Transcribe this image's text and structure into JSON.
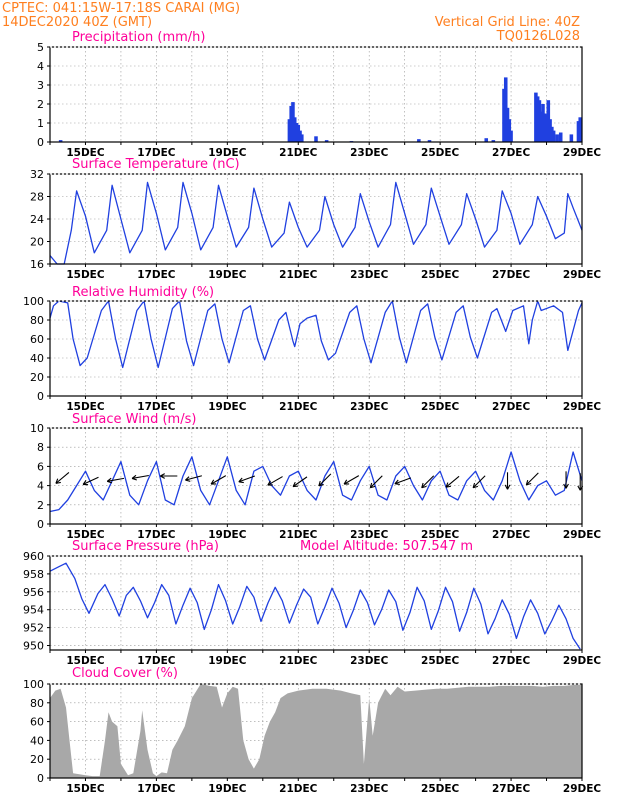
{
  "header": {
    "line1": "CPTEC:   041:15W-17:18S   CARAI (MG)",
    "line2": "14DEC2020 40Z (GMT)",
    "grid_note": "Vertical Grid Line: 40Z",
    "code": "TQ0126L028"
  },
  "colors": {
    "header": "#ff7f1f",
    "title": "#ff0099",
    "line": "#2040e0",
    "cloud": "#a8a8a8",
    "grid": "#999999"
  },
  "chart_data": [
    {
      "id": "precip",
      "type": "bar",
      "title": "Precipitation (mm/h)",
      "x_range_days": [
        14,
        29
      ],
      "ylim": [
        0,
        5
      ],
      "yticks": [
        0,
        1,
        2,
        3,
        4,
        5
      ],
      "grid": true,
      "x_tick_labels": [
        "15DEC",
        "17DEC",
        "19DEC",
        "21DEC",
        "23DEC",
        "25DEC",
        "27DEC",
        "29DEC"
      ],
      "events": [
        {
          "x": 14.3,
          "y": 0.1
        },
        {
          "x": 20.75,
          "y": 1.2
        },
        {
          "x": 20.8,
          "y": 1.9
        },
        {
          "x": 20.85,
          "y": 2.1
        },
        {
          "x": 20.9,
          "y": 1.3
        },
        {
          "x": 20.95,
          "y": 1.0
        },
        {
          "x": 21.0,
          "y": 0.9
        },
        {
          "x": 21.05,
          "y": 0.6
        },
        {
          "x": 21.1,
          "y": 0.4
        },
        {
          "x": 21.5,
          "y": 0.3
        },
        {
          "x": 21.8,
          "y": 0.1
        },
        {
          "x": 22.5,
          "y": 0.05
        },
        {
          "x": 24.4,
          "y": 0.15
        },
        {
          "x": 24.7,
          "y": 0.1
        },
        {
          "x": 26.3,
          "y": 0.2
        },
        {
          "x": 26.5,
          "y": 0.1
        },
        {
          "x": 26.8,
          "y": 2.8
        },
        {
          "x": 26.85,
          "y": 3.4
        },
        {
          "x": 26.9,
          "y": 1.8
        },
        {
          "x": 26.95,
          "y": 1.2
        },
        {
          "x": 27.0,
          "y": 0.6
        },
        {
          "x": 27.7,
          "y": 2.6
        },
        {
          "x": 27.75,
          "y": 2.4
        },
        {
          "x": 27.8,
          "y": 2.2
        },
        {
          "x": 27.85,
          "y": 1.6
        },
        {
          "x": 27.9,
          "y": 2.0
        },
        {
          "x": 27.95,
          "y": 1.5
        },
        {
          "x": 28.0,
          "y": 1.4
        },
        {
          "x": 28.05,
          "y": 2.2
        },
        {
          "x": 28.1,
          "y": 1.2
        },
        {
          "x": 28.15,
          "y": 0.8
        },
        {
          "x": 28.2,
          "y": 0.6
        },
        {
          "x": 28.3,
          "y": 0.4
        },
        {
          "x": 28.4,
          "y": 0.5
        },
        {
          "x": 28.7,
          "y": 0.4
        },
        {
          "x": 28.9,
          "y": 1.1
        },
        {
          "x": 28.95,
          "y": 1.3
        }
      ]
    },
    {
      "id": "temp",
      "type": "line",
      "title": "Surface Temperature (nC)",
      "x_range_days": [
        14,
        29
      ],
      "ylim": [
        16,
        32
      ],
      "yticks": [
        16,
        20,
        24,
        28,
        32
      ],
      "grid": true,
      "x_tick_labels": [
        "15DEC",
        "17DEC",
        "19DEC",
        "21DEC",
        "23DEC",
        "25DEC",
        "27DEC",
        "29DEC"
      ],
      "x": [
        14.0,
        14.2,
        14.4,
        14.6,
        14.75,
        15.0,
        15.25,
        15.6,
        15.75,
        16.0,
        16.25,
        16.6,
        16.75,
        17.0,
        17.25,
        17.6,
        17.75,
        18.0,
        18.25,
        18.6,
        18.75,
        19.0,
        19.25,
        19.6,
        19.75,
        20.0,
        20.25,
        20.6,
        20.75,
        21.0,
        21.25,
        21.6,
        21.75,
        22.0,
        22.25,
        22.6,
        22.75,
        23.0,
        23.25,
        23.6,
        23.75,
        24.0,
        24.25,
        24.6,
        24.75,
        25.0,
        25.25,
        25.6,
        25.75,
        26.0,
        26.25,
        26.6,
        26.75,
        27.0,
        27.25,
        27.6,
        27.75,
        28.0,
        28.25,
        28.5,
        28.6,
        28.75,
        29.0
      ],
      "y": [
        17.5,
        16.0,
        16.0,
        22.0,
        29.0,
        24.5,
        18.0,
        22.0,
        30.0,
        24.0,
        18.0,
        22.0,
        30.5,
        25.0,
        18.5,
        22.5,
        30.5,
        25.0,
        18.5,
        22.5,
        30.0,
        24.5,
        19.0,
        22.5,
        29.5,
        24.0,
        19.0,
        21.5,
        27.0,
        22.5,
        19.0,
        22.0,
        28.0,
        23.0,
        19.0,
        22.5,
        28.5,
        23.5,
        19.0,
        23.0,
        30.5,
        25.0,
        19.5,
        23.0,
        29.5,
        24.5,
        19.5,
        23.0,
        28.5,
        24.0,
        19.0,
        22.0,
        29.0,
        25.0,
        19.5,
        23.0,
        28.0,
        24.5,
        20.5,
        21.5,
        28.5,
        26.0,
        22.0
      ]
    },
    {
      "id": "rh",
      "type": "line",
      "title": "Relative Humidity (%)",
      "x_range_days": [
        14,
        29
      ],
      "ylim": [
        0,
        100
      ],
      "yticks": [
        0,
        20,
        40,
        60,
        80,
        100
      ],
      "grid": true,
      "x_tick_labels": [
        "15DEC",
        "17DEC",
        "19DEC",
        "21DEC",
        "23DEC",
        "25DEC",
        "27DEC",
        "29DEC"
      ],
      "x": [
        14.0,
        14.1,
        14.25,
        14.5,
        14.65,
        14.85,
        15.05,
        15.45,
        15.65,
        15.85,
        16.05,
        16.45,
        16.65,
        16.85,
        17.05,
        17.45,
        17.65,
        17.85,
        18.05,
        18.45,
        18.65,
        18.85,
        19.05,
        19.45,
        19.65,
        19.85,
        20.05,
        20.45,
        20.65,
        20.85,
        20.9,
        21.05,
        21.25,
        21.5,
        21.65,
        21.85,
        22.05,
        22.45,
        22.65,
        22.85,
        23.05,
        23.45,
        23.65,
        23.85,
        24.05,
        24.45,
        24.65,
        24.85,
        25.05,
        25.45,
        25.65,
        25.85,
        26.05,
        26.45,
        26.6,
        26.85,
        27.05,
        27.35,
        27.5,
        27.6,
        27.75,
        27.85,
        28.2,
        28.45,
        28.6,
        28.9,
        29.0
      ],
      "y": [
        82,
        95,
        100,
        98,
        60,
        32,
        40,
        90,
        100,
        60,
        30,
        90,
        100,
        60,
        30,
        92,
        100,
        58,
        32,
        90,
        97,
        60,
        35,
        90,
        95,
        60,
        38,
        80,
        88,
        58,
        52,
        76,
        82,
        85,
        58,
        38,
        45,
        88,
        95,
        60,
        35,
        88,
        100,
        62,
        35,
        90,
        97,
        62,
        38,
        88,
        95,
        62,
        40,
        88,
        92,
        68,
        90,
        95,
        55,
        80,
        100,
        90,
        95,
        88,
        48,
        90,
        98
      ]
    },
    {
      "id": "wind",
      "type": "line",
      "title": "Surface Wind (m/s)",
      "x_range_days": [
        14,
        29
      ],
      "ylim": [
        0,
        10
      ],
      "yticks": [
        0,
        2,
        4,
        6,
        8,
        10
      ],
      "grid": true,
      "x_tick_labels": [
        "15DEC",
        "17DEC",
        "19DEC",
        "21DEC",
        "23DEC",
        "25DEC",
        "27DEC",
        "29DEC"
      ],
      "x": [
        14.0,
        14.25,
        14.5,
        14.75,
        15.0,
        15.25,
        15.5,
        15.75,
        16.0,
        16.25,
        16.5,
        16.75,
        17.0,
        17.25,
        17.5,
        17.75,
        18.0,
        18.25,
        18.5,
        18.75,
        19.0,
        19.25,
        19.5,
        19.75,
        20.0,
        20.25,
        20.5,
        20.75,
        21.0,
        21.25,
        21.5,
        21.75,
        22.0,
        22.25,
        22.5,
        22.75,
        23.0,
        23.25,
        23.5,
        23.75,
        24.0,
        24.25,
        24.5,
        24.75,
        25.0,
        25.25,
        25.5,
        25.75,
        26.0,
        26.25,
        26.5,
        26.75,
        27.0,
        27.25,
        27.5,
        27.75,
        28.0,
        28.25,
        28.5,
        28.75,
        29.0
      ],
      "y": [
        1.3,
        1.5,
        2.5,
        4.0,
        5.5,
        3.5,
        2.5,
        4.5,
        6.5,
        3.0,
        2.0,
        4.5,
        6.5,
        2.5,
        2.0,
        5.0,
        7.0,
        3.5,
        2.0,
        4.5,
        7.0,
        3.5,
        2.0,
        5.5,
        6.0,
        4.0,
        3.0,
        5.0,
        5.5,
        3.5,
        2.5,
        5.0,
        6.5,
        3.0,
        2.5,
        4.5,
        6.0,
        3.0,
        2.5,
        5.0,
        6.0,
        4.0,
        2.5,
        4.5,
        5.5,
        3.0,
        2.5,
        4.5,
        5.5,
        3.5,
        2.5,
        4.5,
        7.5,
        4.5,
        2.5,
        4.0,
        4.5,
        3.0,
        3.5,
        7.5,
        4.5
      ],
      "arrows": [
        {
          "x": 14.35,
          "speed": 4.8,
          "dir": 230
        },
        {
          "x": 15.15,
          "speed": 4.5,
          "dir": 245
        },
        {
          "x": 15.85,
          "speed": 4.6,
          "dir": 260
        },
        {
          "x": 16.55,
          "speed": 4.9,
          "dir": 260
        },
        {
          "x": 17.35,
          "speed": 5.0,
          "dir": 270
        },
        {
          "x": 18.05,
          "speed": 4.8,
          "dir": 255
        },
        {
          "x": 18.75,
          "speed": 4.6,
          "dir": 240
        },
        {
          "x": 19.55,
          "speed": 4.7,
          "dir": 250
        },
        {
          "x": 20.35,
          "speed": 4.5,
          "dir": 240
        },
        {
          "x": 21.05,
          "speed": 4.4,
          "dir": 235
        },
        {
          "x": 21.75,
          "speed": 4.6,
          "dir": 225
        },
        {
          "x": 22.5,
          "speed": 4.6,
          "dir": 240
        },
        {
          "x": 23.2,
          "speed": 4.4,
          "dir": 225
        },
        {
          "x": 23.95,
          "speed": 4.5,
          "dir": 250
        },
        {
          "x": 24.65,
          "speed": 4.4,
          "dir": 225
        },
        {
          "x": 25.35,
          "speed": 4.4,
          "dir": 230
        },
        {
          "x": 26.1,
          "speed": 4.4,
          "dir": 225
        },
        {
          "x": 26.9,
          "speed": 4.5,
          "dir": 180
        },
        {
          "x": 27.6,
          "speed": 4.7,
          "dir": 225
        },
        {
          "x": 28.55,
          "speed": 4.6,
          "dir": 180
        },
        {
          "x": 28.95,
          "speed": 4.4,
          "dir": 180
        }
      ]
    },
    {
      "id": "press",
      "type": "line",
      "title": "Surface Pressure (hPa)",
      "annotation": "Model Altitude: 507.547 m",
      "x_range_days": [
        14,
        29
      ],
      "ylim": [
        949.5,
        960
      ],
      "yticks": [
        950,
        952,
        954,
        956,
        958,
        960
      ],
      "grid": true,
      "x_tick_labels": [
        "15DEC",
        "17DEC",
        "19DEC",
        "21DEC",
        "23DEC",
        "25DEC",
        "27DEC",
        "29DEC"
      ],
      "x": [
        14.0,
        14.25,
        14.45,
        14.7,
        14.9,
        15.1,
        15.35,
        15.55,
        15.75,
        15.95,
        16.15,
        16.35,
        16.55,
        16.75,
        16.95,
        17.15,
        17.35,
        17.55,
        17.75,
        17.95,
        18.15,
        18.35,
        18.55,
        18.75,
        18.95,
        19.15,
        19.35,
        19.55,
        19.75,
        19.95,
        20.15,
        20.35,
        20.55,
        20.75,
        20.95,
        21.15,
        21.35,
        21.55,
        21.75,
        21.95,
        22.15,
        22.35,
        22.55,
        22.75,
        22.95,
        23.15,
        23.35,
        23.55,
        23.75,
        23.95,
        24.15,
        24.35,
        24.55,
        24.75,
        24.95,
        25.15,
        25.35,
        25.55,
        25.75,
        25.95,
        26.15,
        26.35,
        26.55,
        26.75,
        26.95,
        27.15,
        27.35,
        27.55,
        27.75,
        27.95,
        28.15,
        28.35,
        28.55,
        28.75,
        28.95
      ],
      "y": [
        958.3,
        958.8,
        959.2,
        957.5,
        955.2,
        953.6,
        955.8,
        956.8,
        955.2,
        953.3,
        955.6,
        956.5,
        955.0,
        953.1,
        954.8,
        956.8,
        955.6,
        952.4,
        954.5,
        956.4,
        954.8,
        951.8,
        954.0,
        956.8,
        955.0,
        952.4,
        954.3,
        956.6,
        955.4,
        952.7,
        954.8,
        956.5,
        955.0,
        952.5,
        954.5,
        956.3,
        955.4,
        952.4,
        954.3,
        956.4,
        954.7,
        952.0,
        953.9,
        956.2,
        954.8,
        952.3,
        954.0,
        956.2,
        954.9,
        951.7,
        953.7,
        956.5,
        955.0,
        951.8,
        953.9,
        956.5,
        954.9,
        951.6,
        953.7,
        956.4,
        954.6,
        951.3,
        953.0,
        955.1,
        953.5,
        950.8,
        953.2,
        955.1,
        953.6,
        951.3,
        952.8,
        954.5,
        953.0,
        950.8,
        949.6
      ]
    },
    {
      "id": "cloud",
      "type": "area",
      "title": "Cloud Cover (%)",
      "x_range_days": [
        14,
        29
      ],
      "ylim": [
        0,
        100
      ],
      "yticks": [
        0,
        20,
        40,
        60,
        80,
        100
      ],
      "grid": true,
      "x_tick_labels": [
        "15DEC",
        "17DEC",
        "19DEC",
        "21DEC",
        "23DEC",
        "25DEC",
        "27DEC",
        "29DEC"
      ],
      "x": [
        14.0,
        14.15,
        14.3,
        14.45,
        14.55,
        14.65,
        15.0,
        15.2,
        15.4,
        15.55,
        15.65,
        15.75,
        15.9,
        16.0,
        16.2,
        16.35,
        16.55,
        16.6,
        16.75,
        16.9,
        17.0,
        17.15,
        17.3,
        17.45,
        17.6,
        17.8,
        18.0,
        18.25,
        18.5,
        18.7,
        18.85,
        19.0,
        19.15,
        19.3,
        19.45,
        19.6,
        19.75,
        19.9,
        20.05,
        20.2,
        20.35,
        20.5,
        20.7,
        21.0,
        21.4,
        21.8,
        22.2,
        22.5,
        22.75,
        22.85,
        23.0,
        23.1,
        23.25,
        23.45,
        23.6,
        23.8,
        24.0,
        24.3,
        24.6,
        24.9,
        25.2,
        25.5,
        25.8,
        26.1,
        26.4,
        26.7,
        27.0,
        27.3,
        27.6,
        27.9,
        28.2,
        28.5,
        28.8,
        29.0
      ],
      "y": [
        85,
        93,
        95,
        75,
        40,
        5,
        3,
        2,
        2,
        40,
        70,
        60,
        55,
        15,
        3,
        5,
        50,
        72,
        30,
        5,
        2,
        6,
        5,
        30,
        40,
        55,
        85,
        100,
        98,
        97,
        75,
        90,
        97,
        95,
        40,
        20,
        10,
        20,
        45,
        60,
        70,
        85,
        90,
        93,
        95,
        95,
        93,
        90,
        88,
        15,
        85,
        45,
        80,
        95,
        88,
        97,
        92,
        93,
        94,
        95,
        95,
        96,
        97,
        97,
        97,
        98,
        98,
        98,
        98,
        97,
        98,
        98,
        99,
        99
      ]
    }
  ]
}
